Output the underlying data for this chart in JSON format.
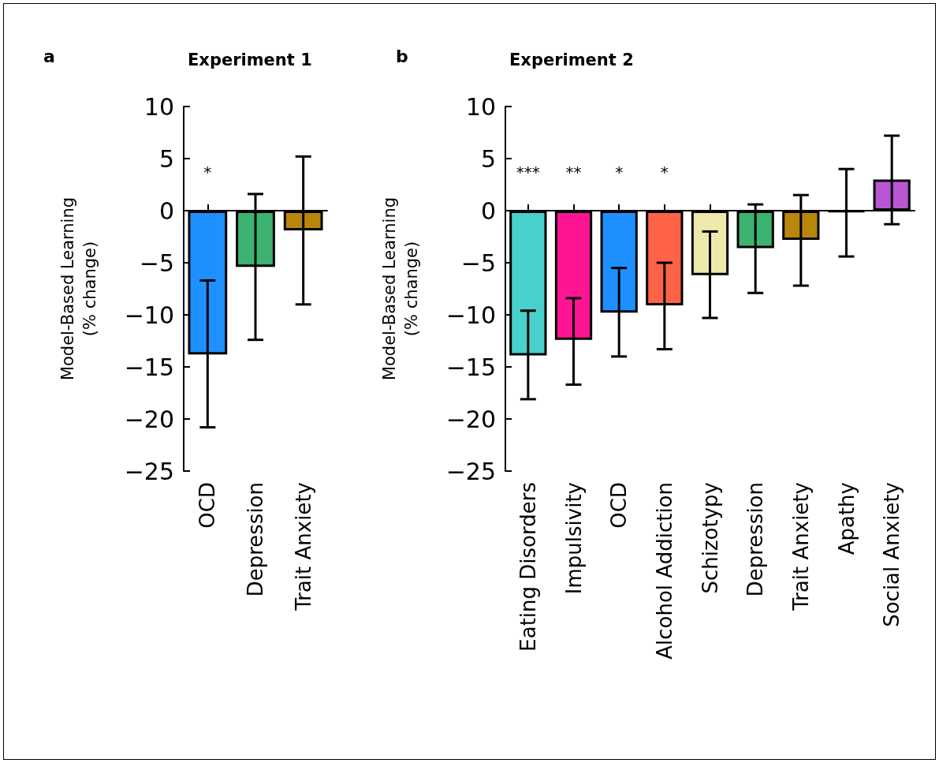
{
  "chart_data": [
    {
      "type": "bar",
      "title": "Experiment 1",
      "ylabel": "Model-Based Learning\n(% change)",
      "categories": [
        "OCD",
        "Depression",
        "Trait Anxiety"
      ],
      "values": [
        -13.8,
        -5.4,
        -1.9
      ],
      "colors": [
        "#1e90ff",
        "#3cb371",
        "#b8860b"
      ],
      "errors": [
        [
          -20.8,
          -6.7
        ],
        [
          -12.4,
          1.6
        ],
        [
          -9.0,
          5.2
        ]
      ],
      "ylim": [
        -25,
        10
      ],
      "yticks": [
        -25,
        -20,
        -15,
        -10,
        -5,
        0,
        5,
        10
      ],
      "grid": false,
      "ref_lines": [
        {
          "axis": "y",
          "value": 0,
          "color": "#000000"
        }
      ],
      "annotations": [
        "a",
        "*"
      ]
    },
    {
      "type": "bar",
      "title": "Experiment 2",
      "ylabel": "Model-Based Learning\n(% change)",
      "categories": [
        "Eating Disorders",
        "Impulsivity",
        "OCD",
        "Alcohol Addiction",
        "Schizotypy",
        "Depression",
        "Trait Anxiety",
        "Apathy",
        "Social Anxiety"
      ],
      "values": [
        -13.9,
        -12.4,
        -9.8,
        -9.1,
        -6.2,
        -3.6,
        -2.8,
        -0.1,
        3.0
      ],
      "colors": [
        "#48d1cc",
        "#ff1493",
        "#1e90ff",
        "#ff6347",
        "#eee8aa",
        "#3cb371",
        "#b8860b",
        "#000000",
        "#ba55d3"
      ],
      "errors": [
        [
          -18.1,
          -9.6
        ],
        [
          -16.7,
          -8.4
        ],
        [
          -14.0,
          -5.5
        ],
        [
          -13.3,
          -5.0
        ],
        [
          -10.3,
          -2.0
        ],
        [
          -7.9,
          0.6
        ],
        [
          -7.2,
          1.5
        ],
        [
          -4.4,
          4.0
        ],
        [
          -1.3,
          7.2
        ]
      ],
      "ylim": [
        -25,
        10
      ],
      "yticks": [
        -25,
        -20,
        -15,
        -10,
        -5,
        0,
        5,
        10
      ],
      "grid": false,
      "ref_lines": [
        {
          "axis": "y",
          "value": 0,
          "color": "#000000"
        }
      ],
      "annotations": [
        "b",
        "***",
        "**",
        "*",
        "*"
      ]
    }
  ]
}
